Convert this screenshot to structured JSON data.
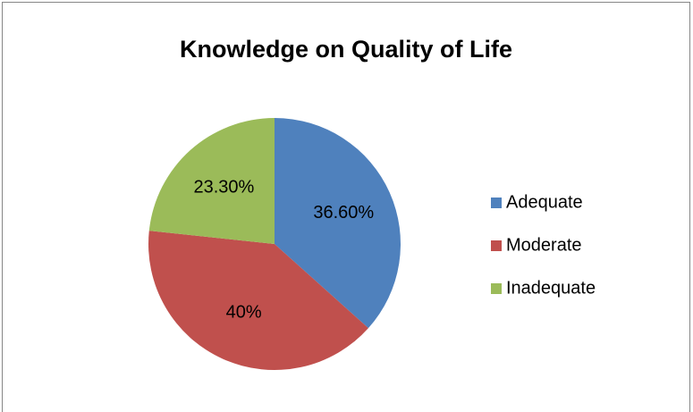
{
  "chart_data": {
    "type": "pie",
    "title": "Knowledge on Quality of Life",
    "categories": [
      "Adequate",
      "Moderate",
      "Inadequate"
    ],
    "values": [
      36.6,
      40,
      23.3
    ],
    "value_labels": [
      "36.60%",
      "40%",
      "23.30%"
    ],
    "colors": [
      "#4f81bd",
      "#c0504d",
      "#9bbb59"
    ],
    "legend": "right"
  }
}
